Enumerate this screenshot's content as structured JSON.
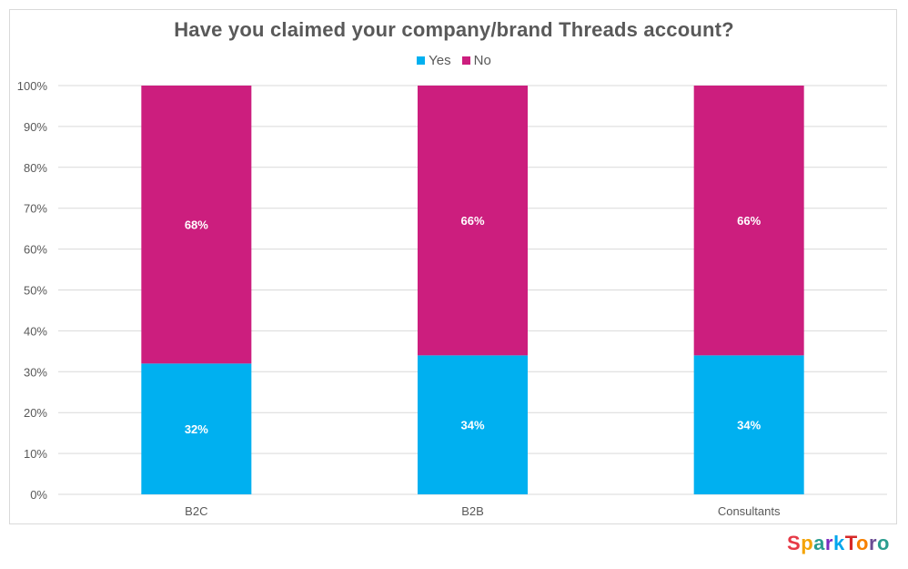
{
  "chart_data": {
    "type": "bar",
    "stacked": true,
    "title": "Have you claimed your company/brand Threads account?",
    "categories": [
      "B2C",
      "B2B",
      "Consultants"
    ],
    "series": [
      {
        "name": "Yes",
        "color": "#00b0f0",
        "values": [
          32,
          34,
          34
        ]
      },
      {
        "name": "No",
        "color": "#cc1e7e",
        "values": [
          68,
          66,
          66
        ]
      }
    ],
    "value_labels": {
      "Yes": [
        "32%",
        "34%",
        "34%"
      ],
      "No": [
        "68%",
        "66%",
        "66%"
      ]
    },
    "yticks": [
      "0%",
      "10%",
      "20%",
      "30%",
      "40%",
      "50%",
      "60%",
      "70%",
      "80%",
      "90%",
      "100%"
    ],
    "ylim": [
      0,
      100
    ],
    "grid": true,
    "legend_position": "top-center"
  },
  "logo": {
    "letters": [
      "S",
      "p",
      "a",
      "r",
      "k",
      "T",
      "o",
      "r",
      "o"
    ],
    "colors": [
      "#e63946",
      "#f4a300",
      "#2a9d8f",
      "#7b2cbf",
      "#00a6ed",
      "#d62828",
      "#f77f00",
      "#6a4c93",
      "#2a9d8f"
    ]
  }
}
